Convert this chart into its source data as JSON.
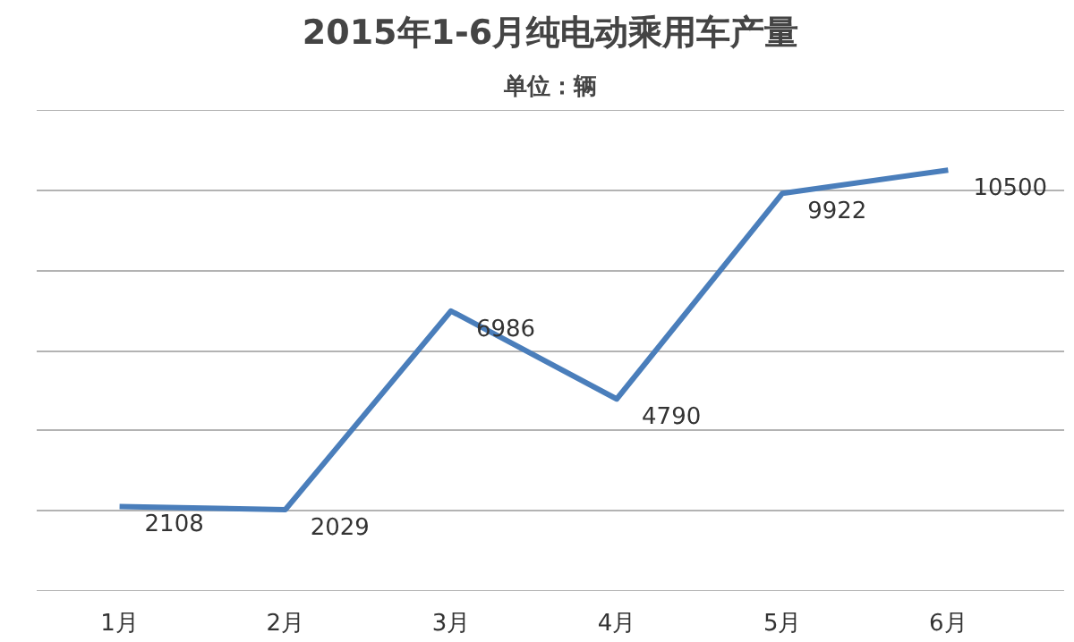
{
  "chart_data": {
    "type": "line",
    "title": "2015年1-6月纯电动乘用车产量",
    "subtitle": "单位：辆",
    "categories": [
      "1月",
      "2月",
      "3月",
      "4月",
      "5月",
      "6月"
    ],
    "series": [
      {
        "color": "#4a7ebb",
        "values": [
          2108,
          2029,
          6986,
          4790,
          9922,
          10500
        ]
      }
    ],
    "ylim": [
      0,
      12000
    ],
    "yticks": [
      {
        "value": 0,
        "label": null
      },
      {
        "value": 2000,
        "label": null
      },
      {
        "value": 4000,
        "label": null
      },
      {
        "value": 6000,
        "label": null
      },
      {
        "value": 8000,
        "label": null
      },
      {
        "value": 10000,
        "label": null
      },
      {
        "value": 12000,
        "label": null
      }
    ],
    "tick_labels": "x",
    "grid": "y",
    "data_labels": true,
    "marker": "none",
    "line_style": "solid"
  }
}
